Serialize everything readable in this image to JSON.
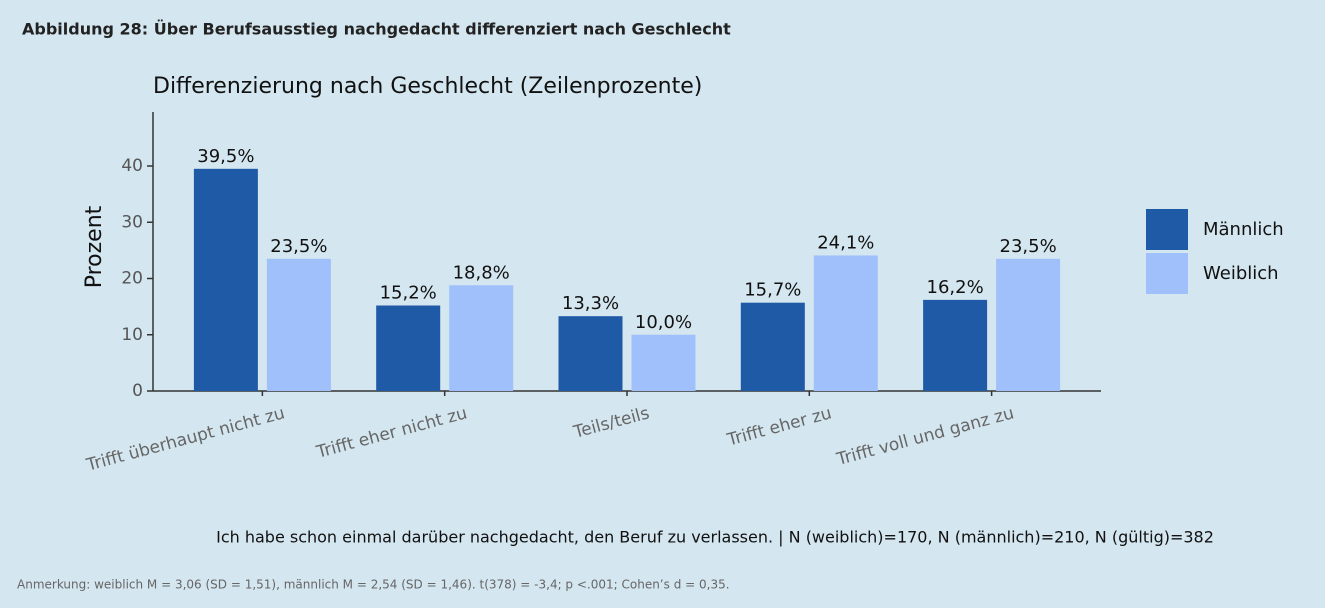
{
  "header": "Abbildung 28: Über Berufsausstieg nachgedacht differenziert nach Geschlecht",
  "note": "Anmerkung: weiblich M = 3,06 (SD = 1,51), männlich M = 2,54 (SD = 1,46). t(378) = -3,4; p <.001; Cohen’s d = 0,35.",
  "chart_data": {
    "type": "bar",
    "title": "Differenzierung nach Geschlecht (Zeilenprozente)",
    "y_label": "Prozent",
    "caption": "Ich habe schon einmal darüber nachgedacht, den Beruf zu verlassen. | N (weiblich)=170, N (männlich)=210, N (gültig)=382",
    "categories": [
      "Trifft überhaupt nicht zu",
      "Trifft eher nicht zu",
      "Teils/teils",
      "Trifft eher zu",
      "Trifft voll und ganz zu"
    ],
    "series": [
      {
        "name": "Männlich",
        "color": "#1f5aa6",
        "values": [
          39.5,
          15.2,
          13.3,
          15.7,
          16.2
        ],
        "value_labels": [
          "39,5%",
          "15,2%",
          "13,3%",
          "15,7%",
          "16,2%"
        ]
      },
      {
        "name": "Weiblich",
        "color": "#a0c0fc",
        "values": [
          23.5,
          18.8,
          10.0,
          24.1,
          23.5
        ],
        "value_labels": [
          "23,5%",
          "18,8%",
          "10,0%",
          "24,1%",
          "23,5%"
        ]
      }
    ],
    "ylim": [
      0,
      49.6
    ],
    "yticks": [
      0,
      10,
      20,
      30,
      40
    ],
    "legend": "right"
  }
}
